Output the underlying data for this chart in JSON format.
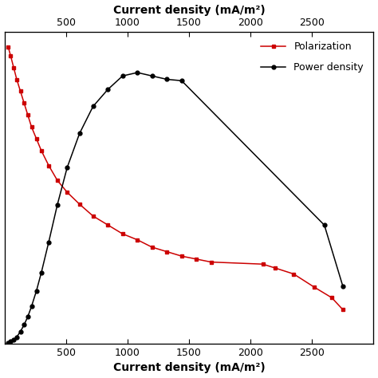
{
  "pol_x": [
    30,
    50,
    75,
    100,
    130,
    160,
    190,
    220,
    260,
    300,
    360,
    430,
    510,
    610,
    720,
    840,
    960,
    1080,
    1200,
    1320,
    1440,
    1560,
    1680,
    2100,
    2200,
    2350,
    2520,
    2660,
    2750
  ],
  "pol_y": [
    1.0,
    0.97,
    0.93,
    0.89,
    0.85,
    0.81,
    0.77,
    0.73,
    0.69,
    0.65,
    0.6,
    0.55,
    0.51,
    0.47,
    0.43,
    0.4,
    0.37,
    0.35,
    0.325,
    0.31,
    0.295,
    0.285,
    0.275,
    0.268,
    0.255,
    0.235,
    0.19,
    0.155,
    0.115
  ],
  "pow_x": [
    30,
    50,
    75,
    100,
    130,
    160,
    190,
    220,
    260,
    300,
    360,
    430,
    510,
    610,
    720,
    840,
    960,
    1080,
    1200,
    1320,
    1440,
    2600,
    2750
  ],
  "pow_y": [
    0.001,
    0.003,
    0.006,
    0.01,
    0.018,
    0.028,
    0.04,
    0.055,
    0.078,
    0.105,
    0.15,
    0.205,
    0.26,
    0.31,
    0.35,
    0.375,
    0.395,
    0.4,
    0.395,
    0.39,
    0.388,
    0.175,
    0.085
  ],
  "pol_color": "#cc0000",
  "pow_color": "#000000",
  "bottom_xlabel": "Current density (mA/m²)",
  "top_xlabel": "Current density (mA/m²)",
  "xlim": [
    0,
    3000
  ],
  "xticks": [
    500,
    1000,
    1500,
    2000,
    2500
  ],
  "ylim_pol": [
    0,
    1.05
  ],
  "ylim_pow": [
    0,
    0.46
  ],
  "legend_pol": "Polarization",
  "legend_pow": "Power density",
  "figsize": [
    4.74,
    4.74
  ],
  "dpi": 100
}
